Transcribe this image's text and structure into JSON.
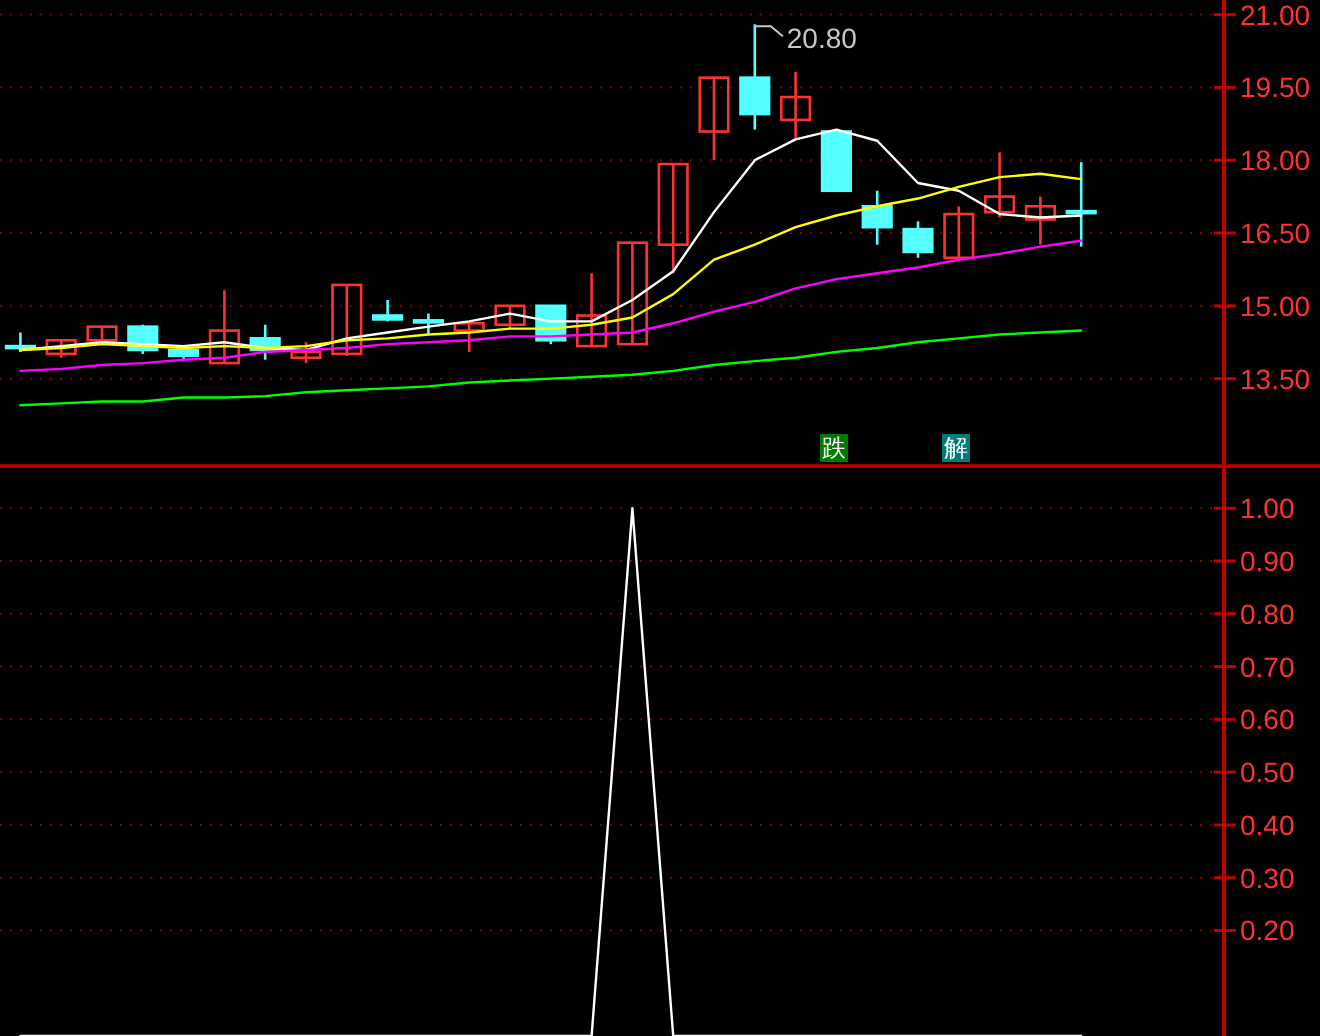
{
  "chart_data": [
    {
      "type": "candlestick",
      "tick_labels": "y",
      "grid": "y",
      "categories": [
        null,
        null,
        null,
        null,
        null,
        null,
        null,
        null,
        null,
        null,
        null,
        null,
        null,
        null,
        null,
        null,
        null,
        null,
        null,
        null,
        null,
        null,
        null,
        null,
        null,
        null,
        null
      ],
      "ohlc": [
        [
          14.17,
          14.45,
          14.05,
          14.15
        ],
        [
          14.01,
          14.29,
          13.93,
          14.29
        ],
        [
          14.29,
          14.57,
          14.29,
          14.57
        ],
        [
          14.57,
          14.61,
          14.01,
          14.09
        ],
        [
          14.09,
          14.17,
          13.86,
          13.97
        ],
        [
          13.82,
          15.32,
          13.82,
          14.49
        ],
        [
          14.33,
          14.61,
          13.89,
          14.09
        ],
        [
          13.93,
          14.25,
          13.82,
          14.05
        ],
        [
          14.01,
          15.43,
          13.97,
          15.43
        ],
        [
          14.8,
          15.12,
          14.68,
          14.72
        ],
        [
          14.7,
          14.84,
          14.41,
          14.66
        ],
        [
          14.49,
          14.64,
          14.05,
          14.64
        ],
        [
          14.61,
          15.0,
          14.53,
          15.0
        ],
        [
          15.0,
          15.0,
          14.21,
          14.29
        ],
        [
          14.17,
          15.67,
          14.17,
          14.8
        ],
        [
          14.21,
          16.3,
          14.21,
          16.3
        ],
        [
          16.26,
          17.92,
          15.67,
          17.92
        ],
        [
          18.59,
          19.7,
          18.0,
          19.7
        ],
        [
          19.7,
          20.8,
          18.63,
          18.95
        ],
        [
          18.83,
          19.82,
          18.43,
          19.3
        ],
        [
          18.59,
          18.63,
          17.37,
          17.37
        ],
        [
          17.05,
          17.37,
          16.26,
          16.62
        ],
        [
          16.58,
          16.74,
          15.99,
          16.11
        ],
        [
          15.99,
          17.05,
          15.99,
          16.89
        ],
        [
          16.93,
          18.16,
          16.82,
          17.25
        ],
        [
          16.78,
          17.25,
          16.26,
          17.05
        ],
        [
          16.95,
          17.96,
          16.22,
          16.93
        ]
      ],
      "colors": [
        "#54ffff",
        "#ff3232",
        "#ff3232",
        "#54ffff",
        "#54ffff",
        "#ff3232",
        "#54ffff",
        "#ff3232",
        "#ff3232",
        "#54ffff",
        "#54ffff",
        "#ff3232",
        "#ff3232",
        "#54ffff",
        "#ff3232",
        "#ff3232",
        "#ff3232",
        "#ff3232",
        "#54ffff",
        "#ff3232",
        "#54ffff",
        "#54ffff",
        "#54ffff",
        "#ff3232",
        "#ff3232",
        "#ff3232",
        "#54ffff"
      ],
      "series": [
        {
          "type": "line",
          "color": "#ffffff",
          "values": [
            14.09,
            14.17,
            14.25,
            14.21,
            14.17,
            14.25,
            14.13,
            14.09,
            14.33,
            14.45,
            14.57,
            14.68,
            14.84,
            14.68,
            14.68,
            15.12,
            15.71,
            16.93,
            18.0,
            18.43,
            18.63,
            18.4,
            17.53,
            17.37,
            16.89,
            16.82,
            16.86
          ]
        },
        {
          "type": "line",
          "color": "#ffff00",
          "values": [
            14.09,
            14.13,
            14.21,
            14.17,
            14.13,
            14.17,
            14.13,
            14.17,
            14.29,
            14.33,
            14.41,
            14.45,
            14.53,
            14.53,
            14.61,
            14.76,
            15.24,
            15.95,
            16.26,
            16.62,
            16.86,
            17.05,
            17.21,
            17.45,
            17.65,
            17.72,
            17.61
          ]
        },
        {
          "type": "line",
          "color": "#ff00ff",
          "values": [
            13.66,
            13.7,
            13.78,
            13.82,
            13.89,
            13.93,
            14.05,
            14.09,
            14.13,
            14.21,
            14.25,
            14.29,
            14.37,
            14.37,
            14.41,
            14.45,
            14.64,
            14.88,
            15.08,
            15.36,
            15.55,
            15.67,
            15.79,
            15.95,
            16.07,
            16.22,
            16.34
          ]
        },
        {
          "type": "line",
          "color": "#00ff00",
          "values": [
            12.95,
            12.99,
            13.03,
            13.03,
            13.11,
            13.11,
            13.14,
            13.22,
            13.26,
            13.3,
            13.34,
            13.42,
            13.46,
            13.5,
            13.54,
            13.58,
            13.66,
            13.78,
            13.86,
            13.93,
            14.05,
            14.13,
            14.25,
            14.33,
            14.41,
            14.45,
            14.49
          ]
        }
      ],
      "ylim": [
        11.7,
        21.3
      ],
      "yticks": [
        {
          "value": 21,
          "label": "21.00"
        },
        {
          "value": 19.5,
          "label": "19.50"
        },
        {
          "value": 18,
          "label": "18.00"
        },
        {
          "value": 16.5,
          "label": "16.50"
        },
        {
          "value": 15,
          "label": "15.00"
        },
        {
          "value": 13.5,
          "label": "13.50"
        }
      ],
      "annotations": [
        "20.80",
        "跌",
        "解"
      ]
    },
    {
      "type": "line",
      "tick_labels": "y",
      "grid": "y",
      "categories": [
        null,
        null,
        null,
        null,
        null,
        null,
        null,
        null,
        null,
        null,
        null,
        null,
        null,
        null,
        null,
        null,
        null,
        null,
        null,
        null,
        null,
        null,
        null,
        null,
        null,
        null,
        null
      ],
      "series": [
        {
          "color": "#ffffff",
          "values": [
            0,
            0,
            0,
            0,
            0,
            0,
            0,
            0,
            0,
            0,
            0,
            0,
            0,
            0,
            0,
            1,
            0,
            0,
            0,
            0,
            0,
            0,
            0,
            0,
            0,
            0,
            0
          ]
        }
      ],
      "ylim": [
        0,
        1.08
      ],
      "yticks": [
        {
          "value": 1,
          "label": "1.00"
        },
        {
          "value": 0.9,
          "label": "0.90"
        },
        {
          "value": 0.8,
          "label": "0.80"
        },
        {
          "value": 0.7,
          "label": "0.70"
        },
        {
          "value": 0.6,
          "label": "0.60"
        },
        {
          "value": 0.5,
          "label": "0.50"
        },
        {
          "value": 0.4,
          "label": "0.40"
        },
        {
          "value": 0.3,
          "label": "0.30"
        },
        {
          "value": 0.2,
          "label": "0.20"
        }
      ]
    }
  ]
}
